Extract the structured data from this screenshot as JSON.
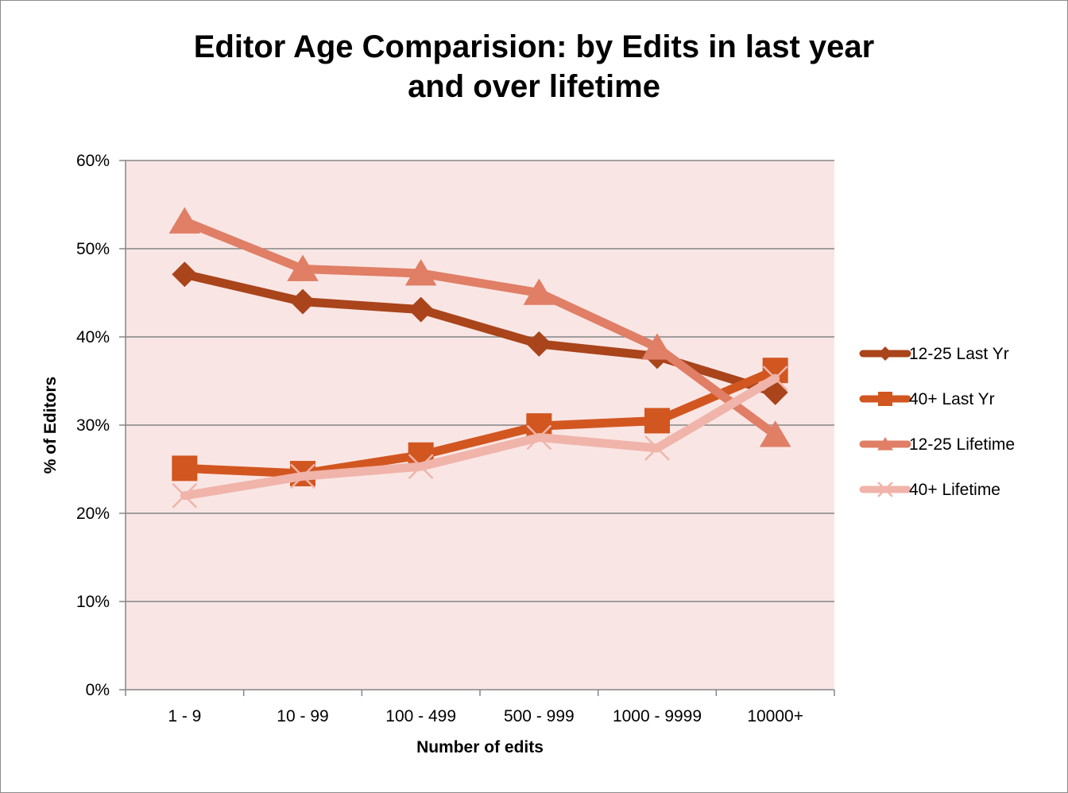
{
  "chart_data": {
    "type": "line",
    "title_lines": [
      "Editor Age Comparision:  by Edits in last year",
      "and over lifetime"
    ],
    "xlabel": "Number of edits",
    "ylabel": "% of Editors",
    "categories": [
      "1 - 9",
      "10 - 99",
      "100 - 499",
      "500 - 999",
      "1000 - 9999",
      "10000+"
    ],
    "ylim": [
      0,
      60
    ],
    "yticks": [
      0,
      10,
      20,
      30,
      40,
      50,
      60
    ],
    "ytick_labels": [
      "0%",
      "10%",
      "20%",
      "30%",
      "40%",
      "50%",
      "60%"
    ],
    "grid": "horizontal",
    "legend": "right",
    "plot_background": "#f9e6e4",
    "series": [
      {
        "name": "12-25 Last Yr",
        "values": [
          47.1,
          44.0,
          43.1,
          39.2,
          37.8,
          33.7
        ],
        "color": "#a9441b",
        "marker": "diamond"
      },
      {
        "name": "40+ Last Yr",
        "values": [
          25.1,
          24.5,
          26.6,
          29.9,
          30.5,
          36.2
        ],
        "color": "#d25620",
        "marker": "square"
      },
      {
        "name": "12-25 Lifetime",
        "values": [
          53.1,
          47.7,
          47.2,
          45.0,
          38.8,
          28.9
        ],
        "color": "#e07e66",
        "marker": "triangle"
      },
      {
        "name": "40+ Lifetime",
        "values": [
          22.0,
          24.2,
          25.3,
          28.6,
          27.4,
          35.3
        ],
        "color": "#f0b4aa",
        "marker": "x"
      }
    ]
  }
}
